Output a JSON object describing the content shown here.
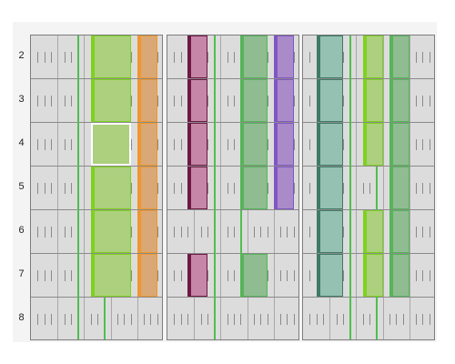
{
  "rows": [
    "2",
    "3",
    "4",
    "5",
    "6",
    "7",
    "8"
  ],
  "colors": {
    "lime": "#acd07e",
    "lime_edge": "#7fd11f",
    "orange": "#d9a876",
    "orange_edge": "#f0962d",
    "magenta": "#c686a8",
    "magenta_edge": "#6b1a44",
    "sage": "#8fbd91",
    "sage_edge": "#56b459",
    "violet": "#a98bc9",
    "violet_edge": "#8055c4",
    "teal": "#95c1b2",
    "teal_edge": "#3f7a66",
    "guide_line": "#4fbf4f",
    "grid_bg": "#dcdcdc"
  },
  "panels": [
    {
      "name": "panel-left",
      "green_lines": [
        {
          "col": 7,
          "from_row": 0,
          "to_row": 7
        },
        {
          "col": 11,
          "from_row": 6,
          "to_row": 7
        }
      ],
      "blocks": [
        {
          "name": "lime-block",
          "style": "lime",
          "col": 9,
          "span": 6,
          "rows": [
            0,
            1,
            2,
            3,
            4,
            5
          ],
          "selected_row": 2
        },
        {
          "name": "orange-block",
          "style": "orange",
          "col": 16,
          "span": 3,
          "rows": [
            0,
            1,
            2,
            3,
            4,
            5
          ]
        }
      ]
    },
    {
      "name": "panel-middle",
      "green_lines": [
        {
          "col": 7,
          "from_row": 0,
          "to_row": 7
        },
        {
          "col": 11,
          "from_row": 4,
          "to_row": 6
        }
      ],
      "blocks": [
        {
          "name": "magenta-block",
          "style": "magenta",
          "col": 3,
          "span": 3,
          "rows": [
            0,
            1,
            2,
            3,
            5
          ]
        },
        {
          "name": "sage-block",
          "style": "sage",
          "col": 11,
          "span": 4,
          "rows": [
            0,
            1,
            2,
            3,
            5
          ]
        },
        {
          "name": "violet-block",
          "style": "violet",
          "col": 16,
          "span": 3,
          "rows": [
            0,
            1,
            2,
            3
          ]
        }
      ]
    },
    {
      "name": "panel-right",
      "green_lines": [
        {
          "col": 7,
          "from_row": 0,
          "to_row": 7
        },
        {
          "col": 11,
          "from_row": 3,
          "to_row": 7
        }
      ],
      "blocks": [
        {
          "name": "teal-block",
          "style": "teal",
          "col": 2,
          "span": 4,
          "rows": [
            0,
            1,
            2,
            3,
            4,
            5
          ]
        },
        {
          "name": "lime-block",
          "style": "lime",
          "col": 9,
          "span": 3,
          "rows": [
            0,
            1,
            2,
            4,
            5
          ]
        },
        {
          "name": "sage-block",
          "style": "sage",
          "col": 13,
          "span": 3,
          "rows": [
            0,
            1,
            2,
            3,
            4,
            5
          ]
        }
      ]
    }
  ]
}
